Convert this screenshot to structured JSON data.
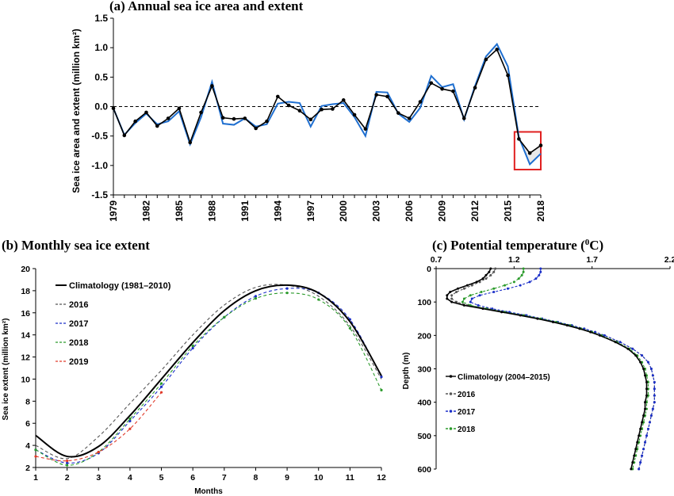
{
  "chart_data": [
    {
      "id": "a",
      "type": "line",
      "title": "(a) Annual sea ice area and extent",
      "xlabel": "",
      "ylabel": "Sea ice area and extent (million km²)",
      "ylim": [
        -1.5,
        1.5
      ],
      "yticks": [
        "-1.5",
        "-1.0",
        "-0.5",
        "0.0",
        "0.5",
        "1.0",
        "1.5"
      ],
      "xticks": [
        "1979",
        "1982",
        "1985",
        "1988",
        "1991",
        "1994",
        "1997",
        "2000",
        "2003",
        "2006",
        "2009",
        "2012",
        "2015",
        "2018"
      ],
      "x": [
        1979,
        1980,
        1981,
        1982,
        1983,
        1984,
        1985,
        1986,
        1987,
        1988,
        1989,
        1990,
        1991,
        1992,
        1993,
        1994,
        1995,
        1996,
        1997,
        1998,
        1999,
        2000,
        2001,
        2002,
        2003,
        2004,
        2005,
        2006,
        2007,
        2008,
        2009,
        2010,
        2011,
        2012,
        2013,
        2014,
        2015,
        2016,
        2017,
        2018
      ],
      "zero_line": true,
      "highlight_box": {
        "x": [
          2015.6,
          2018
        ],
        "y": [
          -1.07,
          -0.43
        ],
        "color": "#e02020"
      },
      "series": [
        {
          "color": "#1f6fd0",
          "values": [
            -0.03,
            -0.48,
            -0.28,
            -0.12,
            -0.3,
            -0.25,
            -0.08,
            -0.64,
            -0.18,
            0.42,
            -0.29,
            -0.31,
            -0.2,
            -0.34,
            -0.3,
            0.05,
            0.08,
            0.06,
            -0.34,
            0.01,
            0.04,
            0.06,
            -0.18,
            -0.5,
            0.25,
            0.24,
            -0.12,
            -0.26,
            -0.02,
            0.52,
            0.33,
            0.38,
            -0.22,
            0.35,
            0.85,
            1.06,
            0.68,
            -0.52,
            -0.98,
            -0.8
          ]
        },
        {
          "color": "#000000",
          "markers": true,
          "values": [
            -0.03,
            -0.49,
            -0.25,
            -0.1,
            -0.33,
            -0.2,
            -0.03,
            -0.61,
            -0.1,
            0.35,
            -0.19,
            -0.21,
            -0.2,
            -0.37,
            -0.25,
            0.17,
            0.02,
            -0.07,
            -0.22,
            -0.05,
            -0.04,
            0.11,
            -0.14,
            -0.38,
            0.2,
            0.17,
            -0.11,
            -0.2,
            0.08,
            0.4,
            0.3,
            0.26,
            -0.2,
            0.32,
            0.8,
            0.97,
            0.53,
            -0.55,
            -0.79,
            -0.66
          ]
        }
      ]
    },
    {
      "id": "b",
      "type": "line",
      "title": "(b) Monthly sea ice extent",
      "xlabel": "Months",
      "ylabel": "Sea ice extent (million km²)",
      "xlim": [
        1,
        12
      ],
      "ylim": [
        2,
        20
      ],
      "xticks": [
        "1",
        "2",
        "3",
        "4",
        "5",
        "6",
        "7",
        "8",
        "9",
        "10",
        "11",
        "12"
      ],
      "yticks": [
        "2",
        "4",
        "6",
        "8",
        "10",
        "12",
        "14",
        "16",
        "18",
        "20"
      ],
      "legend_position": "top-left",
      "series": [
        {
          "name": "Climatology (1981–2010)",
          "color": "#000000",
          "style": "solid",
          "x": [
            1,
            2,
            3,
            4,
            5,
            6,
            7,
            8,
            9,
            10,
            11,
            12
          ],
          "values": [
            4.9,
            3.0,
            3.9,
            6.7,
            10.0,
            13.3,
            16.2,
            18.0,
            18.5,
            17.8,
            15.2,
            10.3
          ]
        },
        {
          "name": "2016",
          "color": "#555555",
          "style": "dashed",
          "x": [
            1,
            2,
            3,
            4,
            5,
            6,
            7,
            8,
            9,
            10,
            11,
            12
          ],
          "values": [
            4.0,
            2.8,
            4.8,
            7.8,
            10.8,
            14.0,
            16.7,
            18.3,
            18.5,
            17.5,
            14.8,
            10.0
          ]
        },
        {
          "name": "2017",
          "color": "#1a2ec8",
          "style": "dashed",
          "markers": true,
          "x": [
            1,
            2,
            3,
            4,
            5,
            6,
            7,
            8,
            9,
            10,
            11,
            12
          ],
          "values": [
            3.6,
            2.4,
            3.3,
            6.2,
            9.3,
            12.8,
            15.6,
            17.5,
            18.2,
            17.8,
            15.4,
            10.2
          ]
        },
        {
          "name": "2018",
          "color": "#2a9a2a",
          "style": "dashed",
          "markers": true,
          "x": [
            1,
            2,
            3,
            4,
            5,
            6,
            7,
            8,
            9,
            10,
            11,
            12
          ],
          "values": [
            3.6,
            2.2,
            3.4,
            6.4,
            9.6,
            13.0,
            15.6,
            17.3,
            17.8,
            17.2,
            14.6,
            9.0
          ]
        },
        {
          "name": "2019",
          "color": "#e03a2a",
          "style": "dashed",
          "markers": true,
          "x": [
            1,
            2,
            3,
            4,
            5
          ],
          "values": [
            3.0,
            2.6,
            3.4,
            5.5,
            8.8
          ]
        }
      ]
    },
    {
      "id": "c",
      "type": "line",
      "title": "(c) Potential temperature (",
      "title_sup": "0",
      "title_unit": "C)",
      "xlabel": "",
      "ylabel": "Depth (m)",
      "xlim": [
        0.7,
        2.2
      ],
      "ylim": [
        0,
        600
      ],
      "xticks": [
        "0.7",
        "1.2",
        "1.7",
        "2.2"
      ],
      "yticks": [
        "0",
        "100",
        "200",
        "300",
        "400",
        "500",
        "600"
      ],
      "legend_position": "bottom-left",
      "depths": [
        0,
        10,
        20,
        30,
        40,
        50,
        60,
        70,
        80,
        90,
        100,
        110,
        120,
        130,
        140,
        150,
        160,
        170,
        180,
        190,
        200,
        220,
        240,
        260,
        280,
        300,
        320,
        340,
        360,
        380,
        400,
        420,
        440,
        460,
        480,
        500,
        520,
        540,
        560,
        580,
        600
      ],
      "series": [
        {
          "name": "Climatology (2004–2015)",
          "color": "#000000",
          "style": "solid",
          "markers": true,
          "values": [
            1.05,
            1.04,
            1.02,
            1.0,
            0.96,
            0.9,
            0.84,
            0.79,
            0.77,
            0.77,
            0.8,
            0.88,
            1.0,
            1.12,
            1.24,
            1.35,
            1.45,
            1.54,
            1.62,
            1.69,
            1.75,
            1.85,
            1.93,
            1.98,
            2.01,
            2.03,
            2.04,
            2.05,
            2.05,
            2.05,
            2.04,
            2.04,
            2.03,
            2.02,
            2.01,
            2.0,
            1.99,
            1.98,
            1.97,
            1.96,
            1.95
          ]
        },
        {
          "name": "2016",
          "color": "#555555",
          "style": "dashed",
          "markers": true,
          "values": [
            1.08,
            1.07,
            1.05,
            1.02,
            0.98,
            0.93,
            0.88,
            0.83,
            0.8,
            0.8,
            0.83,
            0.91,
            1.03,
            1.15,
            1.27,
            1.38,
            1.48,
            1.57,
            1.65,
            1.72,
            1.78,
            1.88,
            1.96,
            2.02,
            2.06,
            2.08,
            2.09,
            2.1,
            2.1,
            2.1,
            2.1,
            2.09,
            2.08,
            2.07,
            2.06,
            2.05,
            2.04,
            2.03,
            2.02,
            2.01,
            2.0
          ]
        },
        {
          "name": "2017",
          "color": "#1a2ec8",
          "style": "dashed",
          "markers": true,
          "values": [
            1.37,
            1.37,
            1.36,
            1.34,
            1.3,
            1.24,
            1.16,
            1.07,
            0.98,
            0.93,
            0.92,
            0.97,
            1.06,
            1.17,
            1.28,
            1.38,
            1.48,
            1.57,
            1.65,
            1.72,
            1.78,
            1.88,
            1.96,
            2.02,
            2.06,
            2.08,
            2.09,
            2.1,
            2.1,
            2.1,
            2.1,
            2.09,
            2.08,
            2.07,
            2.06,
            2.05,
            2.04,
            2.03,
            2.02,
            2.01,
            2.0
          ]
        },
        {
          "name": "2018",
          "color": "#2a9a2a",
          "style": "dashed",
          "markers": true,
          "values": [
            1.26,
            1.26,
            1.25,
            1.23,
            1.2,
            1.14,
            1.07,
            0.99,
            0.92,
            0.88,
            0.87,
            0.92,
            1.02,
            1.14,
            1.26,
            1.37,
            1.47,
            1.56,
            1.63,
            1.7,
            1.76,
            1.86,
            1.94,
            1.99,
            2.02,
            2.04,
            2.05,
            2.06,
            2.06,
            2.06,
            2.05,
            2.05,
            2.04,
            2.03,
            2.02,
            2.01,
            2.0,
            1.99,
            1.98,
            1.97,
            1.96
          ]
        }
      ]
    }
  ]
}
